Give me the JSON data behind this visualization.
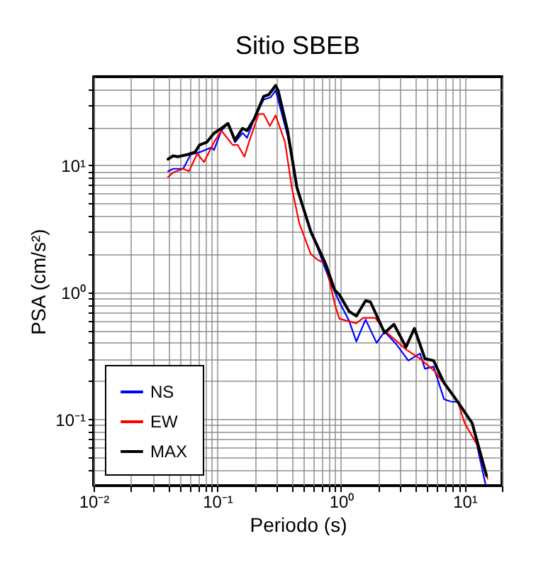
{
  "chart_data": {
    "type": "line",
    "title": "Sitio SBEB",
    "xlabel": "Periodo (s)",
    "ylabel": "PSA (cm/s²)",
    "log": "xy",
    "grid": true,
    "legend": "bottom left",
    "line_style": "solid",
    "xlim": [
      0.01,
      20
    ],
    "ylim": [
      0.03,
      50
    ],
    "xticks": [
      {
        "value": 0.01,
        "label": "10⁻²"
      },
      {
        "value": 0.02,
        "label": null
      },
      {
        "value": 0.03,
        "label": null
      },
      {
        "value": 0.04,
        "label": null
      },
      {
        "value": 0.05,
        "label": null
      },
      {
        "value": 0.06,
        "label": null
      },
      {
        "value": 0.07,
        "label": null
      },
      {
        "value": 0.08,
        "label": null
      },
      {
        "value": 0.09,
        "label": null
      },
      {
        "value": 0.1,
        "label": "10⁻¹"
      },
      {
        "value": 0.2,
        "label": null
      },
      {
        "value": 0.3,
        "label": null
      },
      {
        "value": 0.4,
        "label": null
      },
      {
        "value": 0.5,
        "label": null
      },
      {
        "value": 0.6,
        "label": null
      },
      {
        "value": 0.7,
        "label": null
      },
      {
        "value": 0.8,
        "label": null
      },
      {
        "value": 0.9,
        "label": null
      },
      {
        "value": 1,
        "label": "10⁰"
      },
      {
        "value": 2,
        "label": null
      },
      {
        "value": 3,
        "label": null
      },
      {
        "value": 4,
        "label": null
      },
      {
        "value": 5,
        "label": null
      },
      {
        "value": 6,
        "label": null
      },
      {
        "value": 7,
        "label": null
      },
      {
        "value": 8,
        "label": null
      },
      {
        "value": 9,
        "label": null
      },
      {
        "value": 10,
        "label": "10¹"
      },
      {
        "value": 20,
        "label": null
      }
    ],
    "yticks": [
      {
        "value": 0.04,
        "label": null
      },
      {
        "value": 0.05,
        "label": null
      },
      {
        "value": 0.06,
        "label": null
      },
      {
        "value": 0.07,
        "label": null
      },
      {
        "value": 0.08,
        "label": null
      },
      {
        "value": 0.09,
        "label": null
      },
      {
        "value": 0.1,
        "label": "10⁻¹"
      },
      {
        "value": 0.2,
        "label": null
      },
      {
        "value": 0.3,
        "label": null
      },
      {
        "value": 0.4,
        "label": null
      },
      {
        "value": 0.5,
        "label": null
      },
      {
        "value": 0.6,
        "label": null
      },
      {
        "value": 0.7,
        "label": null
      },
      {
        "value": 0.8,
        "label": null
      },
      {
        "value": 0.9,
        "label": null
      },
      {
        "value": 1,
        "label": "10⁰"
      },
      {
        "value": 2,
        "label": null
      },
      {
        "value": 3,
        "label": null
      },
      {
        "value": 4,
        "label": null
      },
      {
        "value": 5,
        "label": null
      },
      {
        "value": 6,
        "label": null
      },
      {
        "value": 7,
        "label": null
      },
      {
        "value": 8,
        "label": null
      },
      {
        "value": 9,
        "label": null
      },
      {
        "value": 10,
        "label": "10¹"
      },
      {
        "value": 20,
        "label": null
      },
      {
        "value": 30,
        "label": null
      },
      {
        "value": 40,
        "label": null
      }
    ],
    "series": [
      {
        "name": "NS",
        "color": "#0000ff",
        "x": [
          0.04,
          0.044,
          0.053,
          0.061,
          0.072,
          0.09,
          0.094,
          0.108,
          0.122,
          0.139,
          0.16,
          0.174,
          0.199,
          0.237,
          0.27,
          0.296,
          0.37,
          0.44,
          0.57,
          0.81,
          0.97,
          1.16,
          1.33,
          1.58,
          1.94,
          2.25,
          2.8,
          3.5,
          4.35,
          4.77,
          5.6,
          6.8,
          7.7,
          8.8,
          11.5,
          14.7
        ],
        "values": [
          9.0,
          9.4,
          9.4,
          12.2,
          12.7,
          13.9,
          13.2,
          18.8,
          21.4,
          15.2,
          18,
          16.5,
          23.3,
          33,
          34.4,
          39,
          17.2,
          6.7,
          3.1,
          1.24,
          0.84,
          0.6,
          0.41,
          0.61,
          0.4,
          0.49,
          0.39,
          0.29,
          0.33,
          0.25,
          0.26,
          0.144,
          0.138,
          0.137,
          0.093,
          0.031
        ]
      },
      {
        "name": "EW",
        "color": "#ff0000",
        "x": [
          0.04,
          0.044,
          0.053,
          0.059,
          0.069,
          0.078,
          0.094,
          0.108,
          0.133,
          0.146,
          0.166,
          0.18,
          0.216,
          0.237,
          0.266,
          0.296,
          0.353,
          0.4,
          0.46,
          0.57,
          0.65,
          0.75,
          0.89,
          0.97,
          1.33,
          1.51,
          1.89,
          2.25,
          3.35,
          4.35,
          5.7,
          8.8,
          10,
          12.6,
          15.3
        ],
        "values": [
          8.1,
          8.8,
          9.4,
          9.0,
          12.4,
          10.6,
          15.2,
          18.8,
          14.5,
          14.5,
          11.7,
          15.2,
          25.4,
          25.4,
          20.4,
          24.8,
          15.2,
          6.7,
          3.5,
          2.0,
          1.8,
          1.68,
          0.81,
          0.62,
          0.57,
          0.63,
          0.63,
          0.5,
          0.355,
          0.3,
          0.24,
          0.137,
          0.093,
          0.063,
          0.034
        ]
      },
      {
        "name": "MAX",
        "color": "#000000",
        "x": [
          0.04,
          0.044,
          0.048,
          0.058,
          0.066,
          0.072,
          0.082,
          0.094,
          0.108,
          0.122,
          0.139,
          0.16,
          0.174,
          0.199,
          0.237,
          0.26,
          0.296,
          0.31,
          0.37,
          0.44,
          0.57,
          0.75,
          0.89,
          0.97,
          1.16,
          1.33,
          1.58,
          1.73,
          2.25,
          2.68,
          3.35,
          3.92,
          4.77,
          5.6,
          6.8,
          8.8,
          11.5,
          15
        ],
        "values": [
          11.2,
          11.9,
          11.7,
          12.2,
          12.7,
          14.5,
          15.2,
          17.9,
          19.6,
          21.4,
          15.8,
          19.6,
          18.8,
          23.3,
          35,
          36,
          42.6,
          39,
          18.8,
          6.7,
          3.0,
          1.68,
          1.04,
          0.96,
          0.71,
          0.65,
          0.86,
          0.84,
          0.48,
          0.56,
          0.37,
          0.52,
          0.3,
          0.29,
          0.194,
          0.137,
          0.093,
          0.036
        ]
      }
    ]
  }
}
